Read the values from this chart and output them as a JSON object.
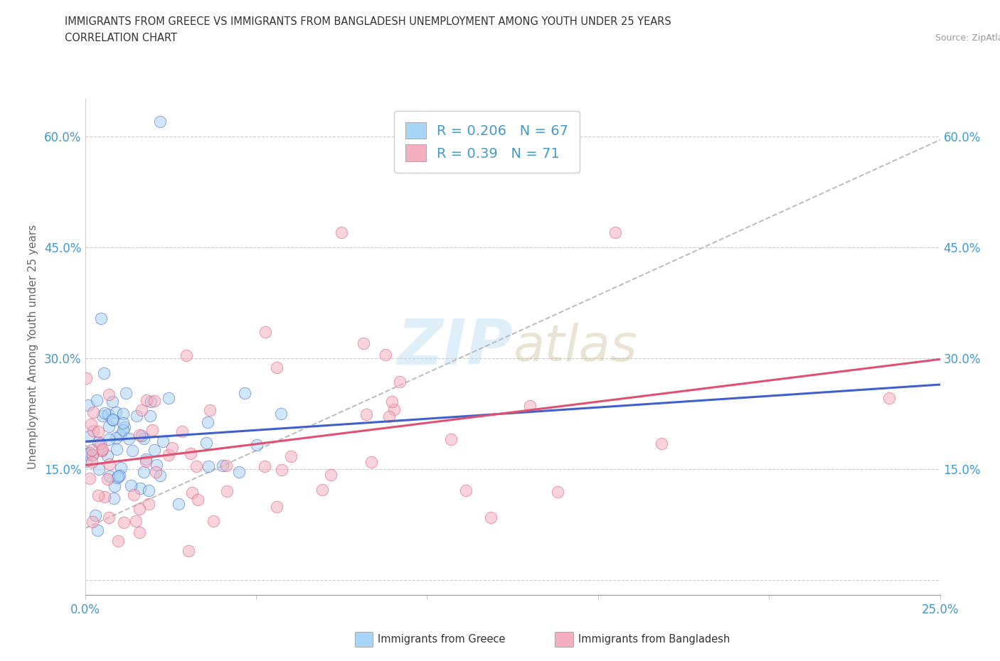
{
  "title_line1": "IMMIGRANTS FROM GREECE VS IMMIGRANTS FROM BANGLADESH UNEMPLOYMENT AMONG YOUTH UNDER 25 YEARS",
  "title_line2": "CORRELATION CHART",
  "source": "Source: ZipAtlas.com",
  "ylabel": "Unemployment Among Youth under 25 years",
  "xlim": [
    0.0,
    0.25
  ],
  "ylim": [
    -0.02,
    0.65
  ],
  "xticks": [
    0.0,
    0.05,
    0.1,
    0.15,
    0.2,
    0.25
  ],
  "yticks": [
    0.0,
    0.15,
    0.3,
    0.45,
    0.6
  ],
  "xtick_labels": [
    "0.0%",
    "",
    "",
    "",
    "",
    "25.0%"
  ],
  "ytick_labels_left": [
    "",
    "15.0%",
    "30.0%",
    "45.0%",
    "60.0%"
  ],
  "ytick_labels_right": [
    "",
    "15.0%",
    "30.0%",
    "45.0%",
    "60.0%"
  ],
  "color_greece": "#a8d4f5",
  "color_bangladesh": "#f5b0c0",
  "trendline_greece_color": "#4060d0",
  "trendline_bangladesh_color": "#e05070",
  "R_greece": 0.206,
  "N_greece": 67,
  "R_bangladesh": 0.39,
  "N_bangladesh": 71,
  "legend_label_greece": "Immigrants from Greece",
  "legend_label_bangladesh": "Immigrants from Bangladesh",
  "background_color": "#ffffff",
  "grid_color": "#cccccc",
  "title_color": "#333333",
  "axis_label_color": "#666666",
  "tick_label_color": "#4499cc",
  "ref_line_color": "#bbbbbb",
  "ref_line_slope": 2.1,
  "ref_line_intercept": 0.07
}
